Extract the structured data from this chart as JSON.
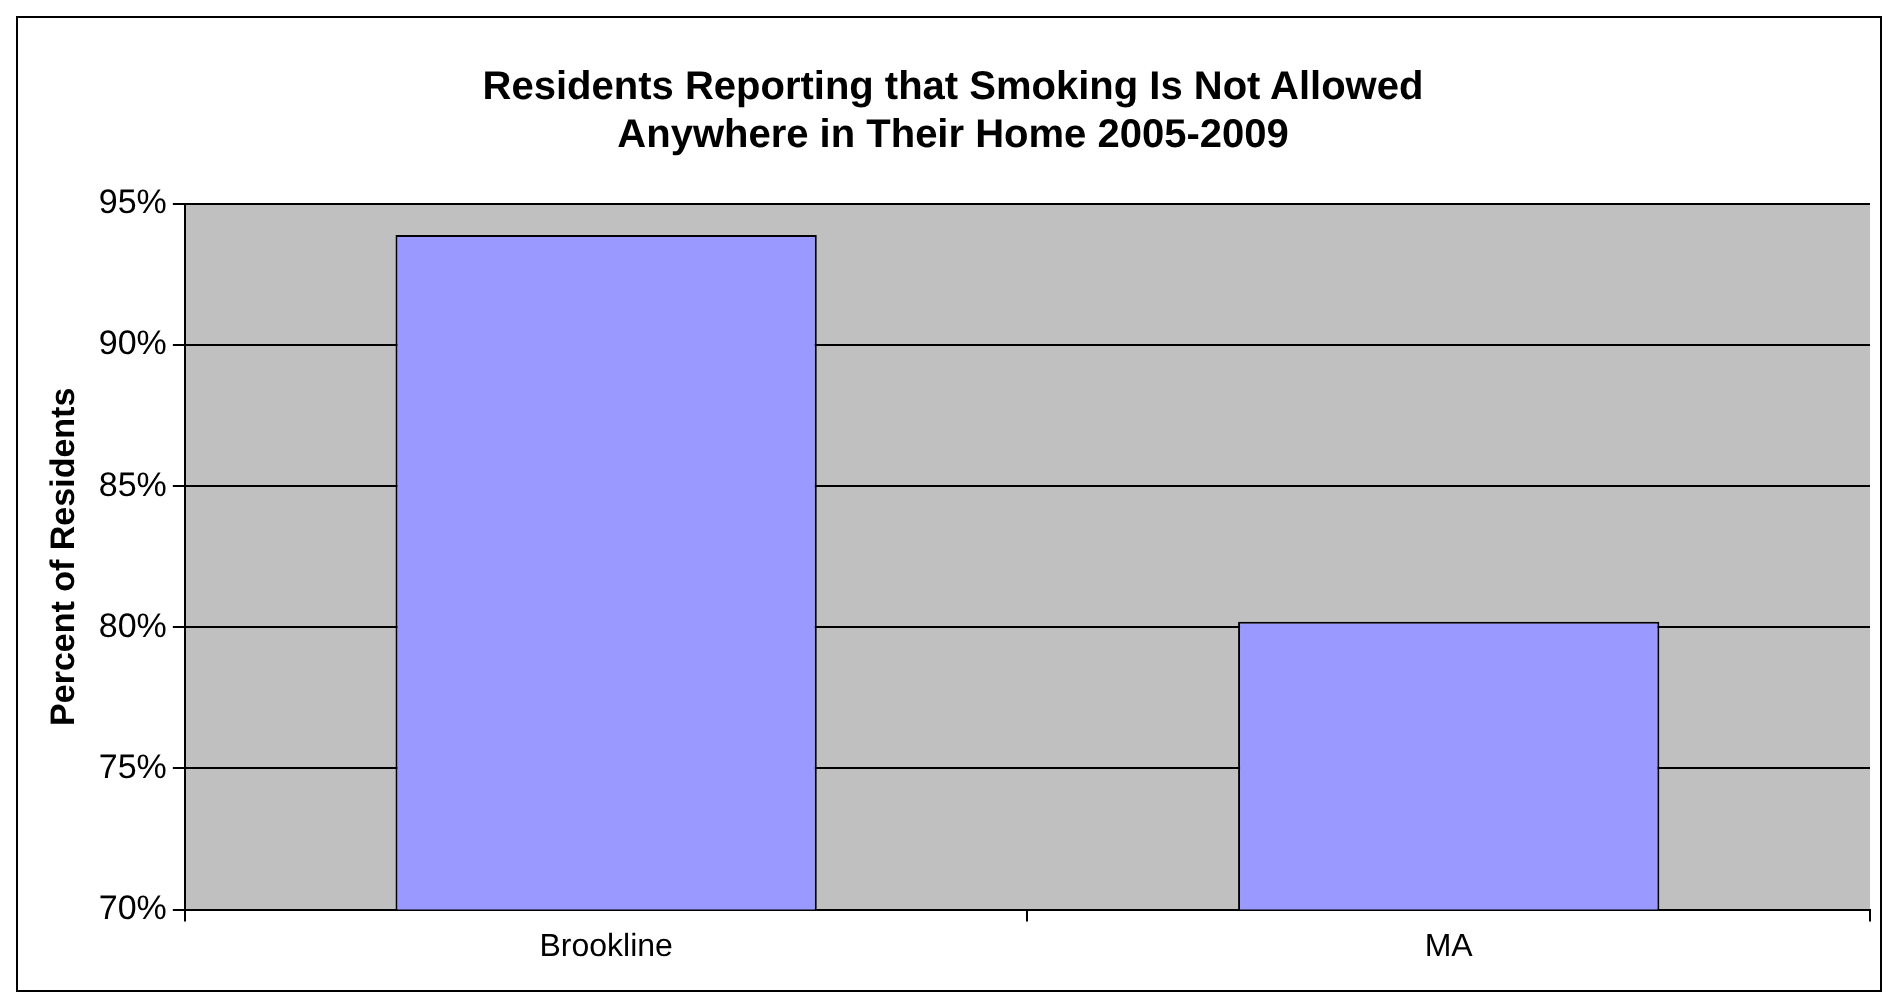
{
  "chart_data": {
    "type": "bar",
    "title": "Residents Reporting that Smoking Is Not Allowed Anywhere in Their Home 2005-2009",
    "ylabel": "Percent of Residents",
    "categories": [
      "Brookline",
      "MA"
    ],
    "values": [
      93.9,
      80.2
    ],
    "color": "#9999ff",
    "ylim": [
      70,
      95
    ],
    "yticks": [
      {
        "value": 70,
        "label": "70%"
      },
      {
        "value": 75,
        "label": "75%"
      },
      {
        "value": 80,
        "label": "80%"
      },
      {
        "value": 85,
        "label": "85%"
      },
      {
        "value": 90,
        "label": "90%"
      },
      {
        "value": 95,
        "label": "95%"
      }
    ],
    "grid": "y",
    "legend": false
  }
}
